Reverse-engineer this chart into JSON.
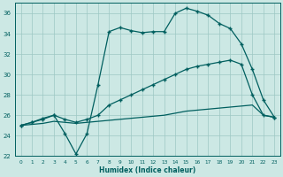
{
  "xlabel": "Humidex (Indice chaleur)",
  "bg_color": "#cce8e4",
  "grid_color": "#9ec8c4",
  "line_color": "#005f5f",
  "xlim": [
    -0.5,
    23.5
  ],
  "ylim": [
    22,
    37
  ],
  "xticks": [
    0,
    1,
    2,
    3,
    4,
    5,
    6,
    7,
    8,
    9,
    10,
    11,
    12,
    13,
    14,
    15,
    16,
    17,
    18,
    19,
    20,
    21,
    22,
    23
  ],
  "yticks": [
    22,
    24,
    26,
    28,
    30,
    32,
    34,
    36
  ],
  "s1_x": [
    0,
    1,
    2,
    3,
    4,
    5,
    6,
    7,
    8,
    9,
    10,
    11,
    12,
    13,
    14,
    15,
    16,
    17,
    18,
    19,
    20,
    21,
    22,
    23
  ],
  "s1_y": [
    25.0,
    25.3,
    25.7,
    26.0,
    24.2,
    22.2,
    24.2,
    29.0,
    34.2,
    34.6,
    34.3,
    34.1,
    34.2,
    34.2,
    36.0,
    36.5,
    36.2,
    35.8,
    35.0,
    34.5,
    33.0,
    30.5,
    27.5,
    25.8
  ],
  "s2_x": [
    0,
    1,
    2,
    3,
    4,
    5,
    6,
    7,
    8,
    9,
    10,
    11,
    12,
    13,
    14,
    15,
    16,
    17,
    18,
    19,
    20,
    21,
    22,
    23
  ],
  "s2_y": [
    25.0,
    25.3,
    25.6,
    26.0,
    25.6,
    25.3,
    25.6,
    26.0,
    27.0,
    27.5,
    28.0,
    28.5,
    29.0,
    29.5,
    30.0,
    30.5,
    30.8,
    31.0,
    31.2,
    31.4,
    31.0,
    28.0,
    26.0,
    25.8
  ],
  "s3_x": [
    0,
    1,
    2,
    3,
    4,
    5,
    6,
    7,
    8,
    9,
    10,
    11,
    12,
    13,
    14,
    15,
    16,
    17,
    18,
    19,
    20,
    21,
    22,
    23
  ],
  "s3_y": [
    25.0,
    25.1,
    25.2,
    25.4,
    25.3,
    25.2,
    25.3,
    25.4,
    25.5,
    25.6,
    25.7,
    25.8,
    25.9,
    26.0,
    26.2,
    26.4,
    26.5,
    26.6,
    26.7,
    26.8,
    26.9,
    27.0,
    26.0,
    25.8
  ]
}
